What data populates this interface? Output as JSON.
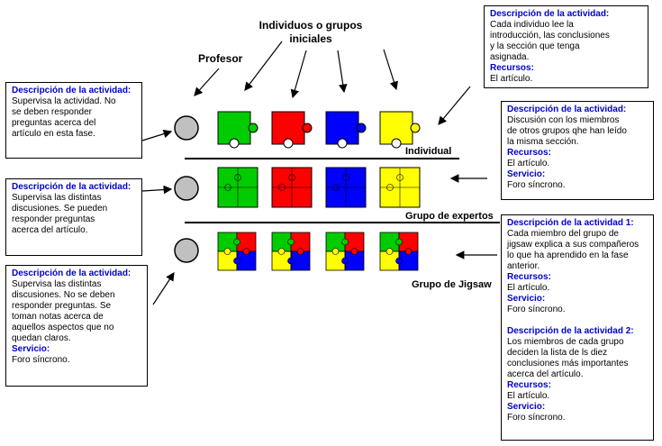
{
  "header": {
    "groups_title": "Individuos o grupos\niniciales",
    "professor_label": "Profesor"
  },
  "rows": {
    "individual_label": "Individual",
    "experts_label": "Grupo de expertos",
    "jigsaw_label": "Grupo de Jigsaw"
  },
  "left_boxes": [
    {
      "heading": "Descripción de la actividad:",
      "text": "Supervisa la actividad. No\nse deben responder\npreguntas acerca del\nartículo en esta fase."
    },
    {
      "heading": "Descripción de la actividad:",
      "text": "Supervisa las distintas\ndiscusiones. Se pueden\nresponder preguntas\nacerca del artículo."
    },
    {
      "heading": "Descripción de la actividad:",
      "text": "Supervisa las distintas\ndiscusiones. No se deben\nresponder preguntas. Se\ntoman notas acerca de\naquellos aspectos que no\nquedan claros.",
      "service_heading": "Servicio:",
      "service_text": "Foro síncrono."
    }
  ],
  "right_boxes": {
    "top": {
      "heading": "Descripción de la actividad:",
      "text": "Cada individuo lee la\nintroducción, las conclusiones\ny la sección que tenga\nasignada.",
      "resources_heading": "Recursos:",
      "resources_text": "El artículo."
    },
    "middle": {
      "heading": "Descripción de la actividad:",
      "text": "Discusión con los miembros\nde otros grupos qhe han leído\nla misma sección.",
      "resources_heading": "Recursos:",
      "resources_text": "El artículo.",
      "service_heading": "Servicio:",
      "service_text": "Foro síncrono."
    },
    "bottom": {
      "heading1": "Descripción de la actividad 1:",
      "text1": "Cada miembro del grupo de\njigsaw explica a sus compañeros\nlo que ha aprendido en la fase\nanterior.",
      "resources_heading1": "Recursos:",
      "resources_text1": "El artículo.",
      "service_heading1": "Servicio:",
      "service_text1": "Foro síncrono.",
      "heading2": "Descripción de la actividad 2:",
      "text2": "Los miembros de cada grupo\ndeciden la lista de ls diez\nconclusiones más importantes\nacerca del artículo.",
      "resources_heading2": "Recursos:",
      "resources_text2": "El artículo.",
      "service_heading2": "Servicio:",
      "service_text2": "Foro síncrono."
    }
  },
  "colors": {
    "green": "#00cc00",
    "red": "#ff0000",
    "blue": "#0000ff",
    "yellow": "#ffff00",
    "heading": "#0000cc",
    "circle": "#c0c0c0"
  }
}
